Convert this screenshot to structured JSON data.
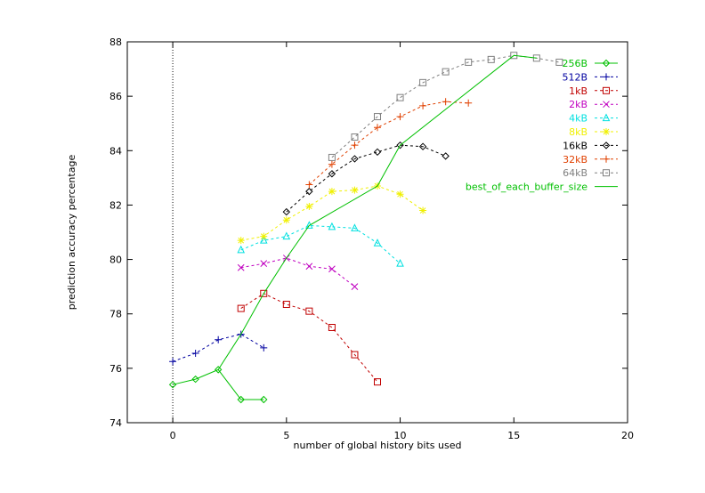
{
  "chart_data": {
    "type": "line",
    "xlabel": "number of global history bits used",
    "ylabel": "prediction accuracy percentage",
    "xlim": [
      -2,
      20
    ],
    "ylim": [
      74,
      88
    ],
    "xticks": [
      0,
      5,
      10,
      15,
      20
    ],
    "yticks": [
      74,
      76,
      78,
      80,
      82,
      84,
      86,
      88
    ],
    "grid": false,
    "legend_position": "top-right",
    "reference_line": {
      "x": 0,
      "style": "dotted"
    },
    "series": [
      {
        "name": "256B",
        "color": "#00c000",
        "marker": "diamond",
        "dash": "",
        "x": [
          0,
          1,
          2,
          3,
          4
        ],
        "y": [
          75.4,
          75.6,
          75.95,
          74.85,
          74.85
        ]
      },
      {
        "name": "512B",
        "color": "#0000a0",
        "marker": "plus",
        "dash": "3,3",
        "x": [
          0,
          1,
          2,
          3,
          4
        ],
        "y": [
          76.25,
          76.55,
          77.05,
          77.25,
          76.75
        ]
      },
      {
        "name": "1kB",
        "color": "#c00000",
        "marker": "square",
        "dash": "3,3",
        "x": [
          3,
          4,
          5,
          6,
          7,
          8,
          9
        ],
        "y": [
          78.2,
          78.75,
          78.35,
          78.1,
          77.5,
          76.5,
          75.5
        ]
      },
      {
        "name": "2kB",
        "color": "#c000c0",
        "marker": "x",
        "dash": "3,3",
        "x": [
          3,
          4,
          5,
          6,
          7,
          8
        ],
        "y": [
          79.7,
          79.85,
          80.05,
          79.75,
          79.65,
          79.0
        ]
      },
      {
        "name": "4kB",
        "color": "#00e0e0",
        "marker": "triangle",
        "dash": "3,3",
        "x": [
          3,
          4,
          5,
          6,
          7,
          8,
          9,
          10
        ],
        "y": [
          80.35,
          80.7,
          80.85,
          81.25,
          81.2,
          81.15,
          80.6,
          79.85
        ]
      },
      {
        "name": "8kB",
        "color": "#f0f000",
        "marker": "star",
        "dash": "3,3",
        "x": [
          3,
          4,
          5,
          6,
          7,
          8,
          9,
          10,
          11
        ],
        "y": [
          80.7,
          80.85,
          81.45,
          81.95,
          82.5,
          82.55,
          82.7,
          82.4,
          81.8
        ]
      },
      {
        "name": "16kB",
        "color": "#000000",
        "marker": "diamond",
        "dash": "3,3",
        "x": [
          5,
          6,
          7,
          8,
          9,
          10,
          11,
          12
        ],
        "y": [
          81.75,
          82.5,
          83.15,
          83.7,
          83.95,
          84.2,
          84.15,
          83.8
        ]
      },
      {
        "name": "32kB",
        "color": "#e04000",
        "marker": "plus",
        "dash": "3,3",
        "x": [
          6,
          7,
          8,
          9,
          10,
          11,
          12,
          13
        ],
        "y": [
          82.75,
          83.5,
          84.2,
          84.85,
          85.25,
          85.65,
          85.8,
          85.75
        ]
      },
      {
        "name": "64kB",
        "color": "#808080",
        "marker": "square",
        "dash": "3,3",
        "x": [
          7,
          8,
          9,
          10,
          11,
          12,
          13,
          14,
          15,
          16,
          17
        ],
        "y": [
          83.75,
          84.5,
          85.25,
          85.95,
          86.5,
          86.9,
          87.25,
          87.35,
          87.5,
          87.4,
          87.25
        ]
      },
      {
        "name": "best_of_each_buffer_size",
        "color": "#00c000",
        "marker": "none",
        "dash": "",
        "x": [
          2,
          3,
          4,
          5,
          6,
          9,
          10,
          15,
          16
        ],
        "y": [
          75.95,
          77.25,
          78.75,
          80.05,
          81.25,
          82.7,
          84.2,
          87.5,
          87.4
        ]
      }
    ]
  }
}
